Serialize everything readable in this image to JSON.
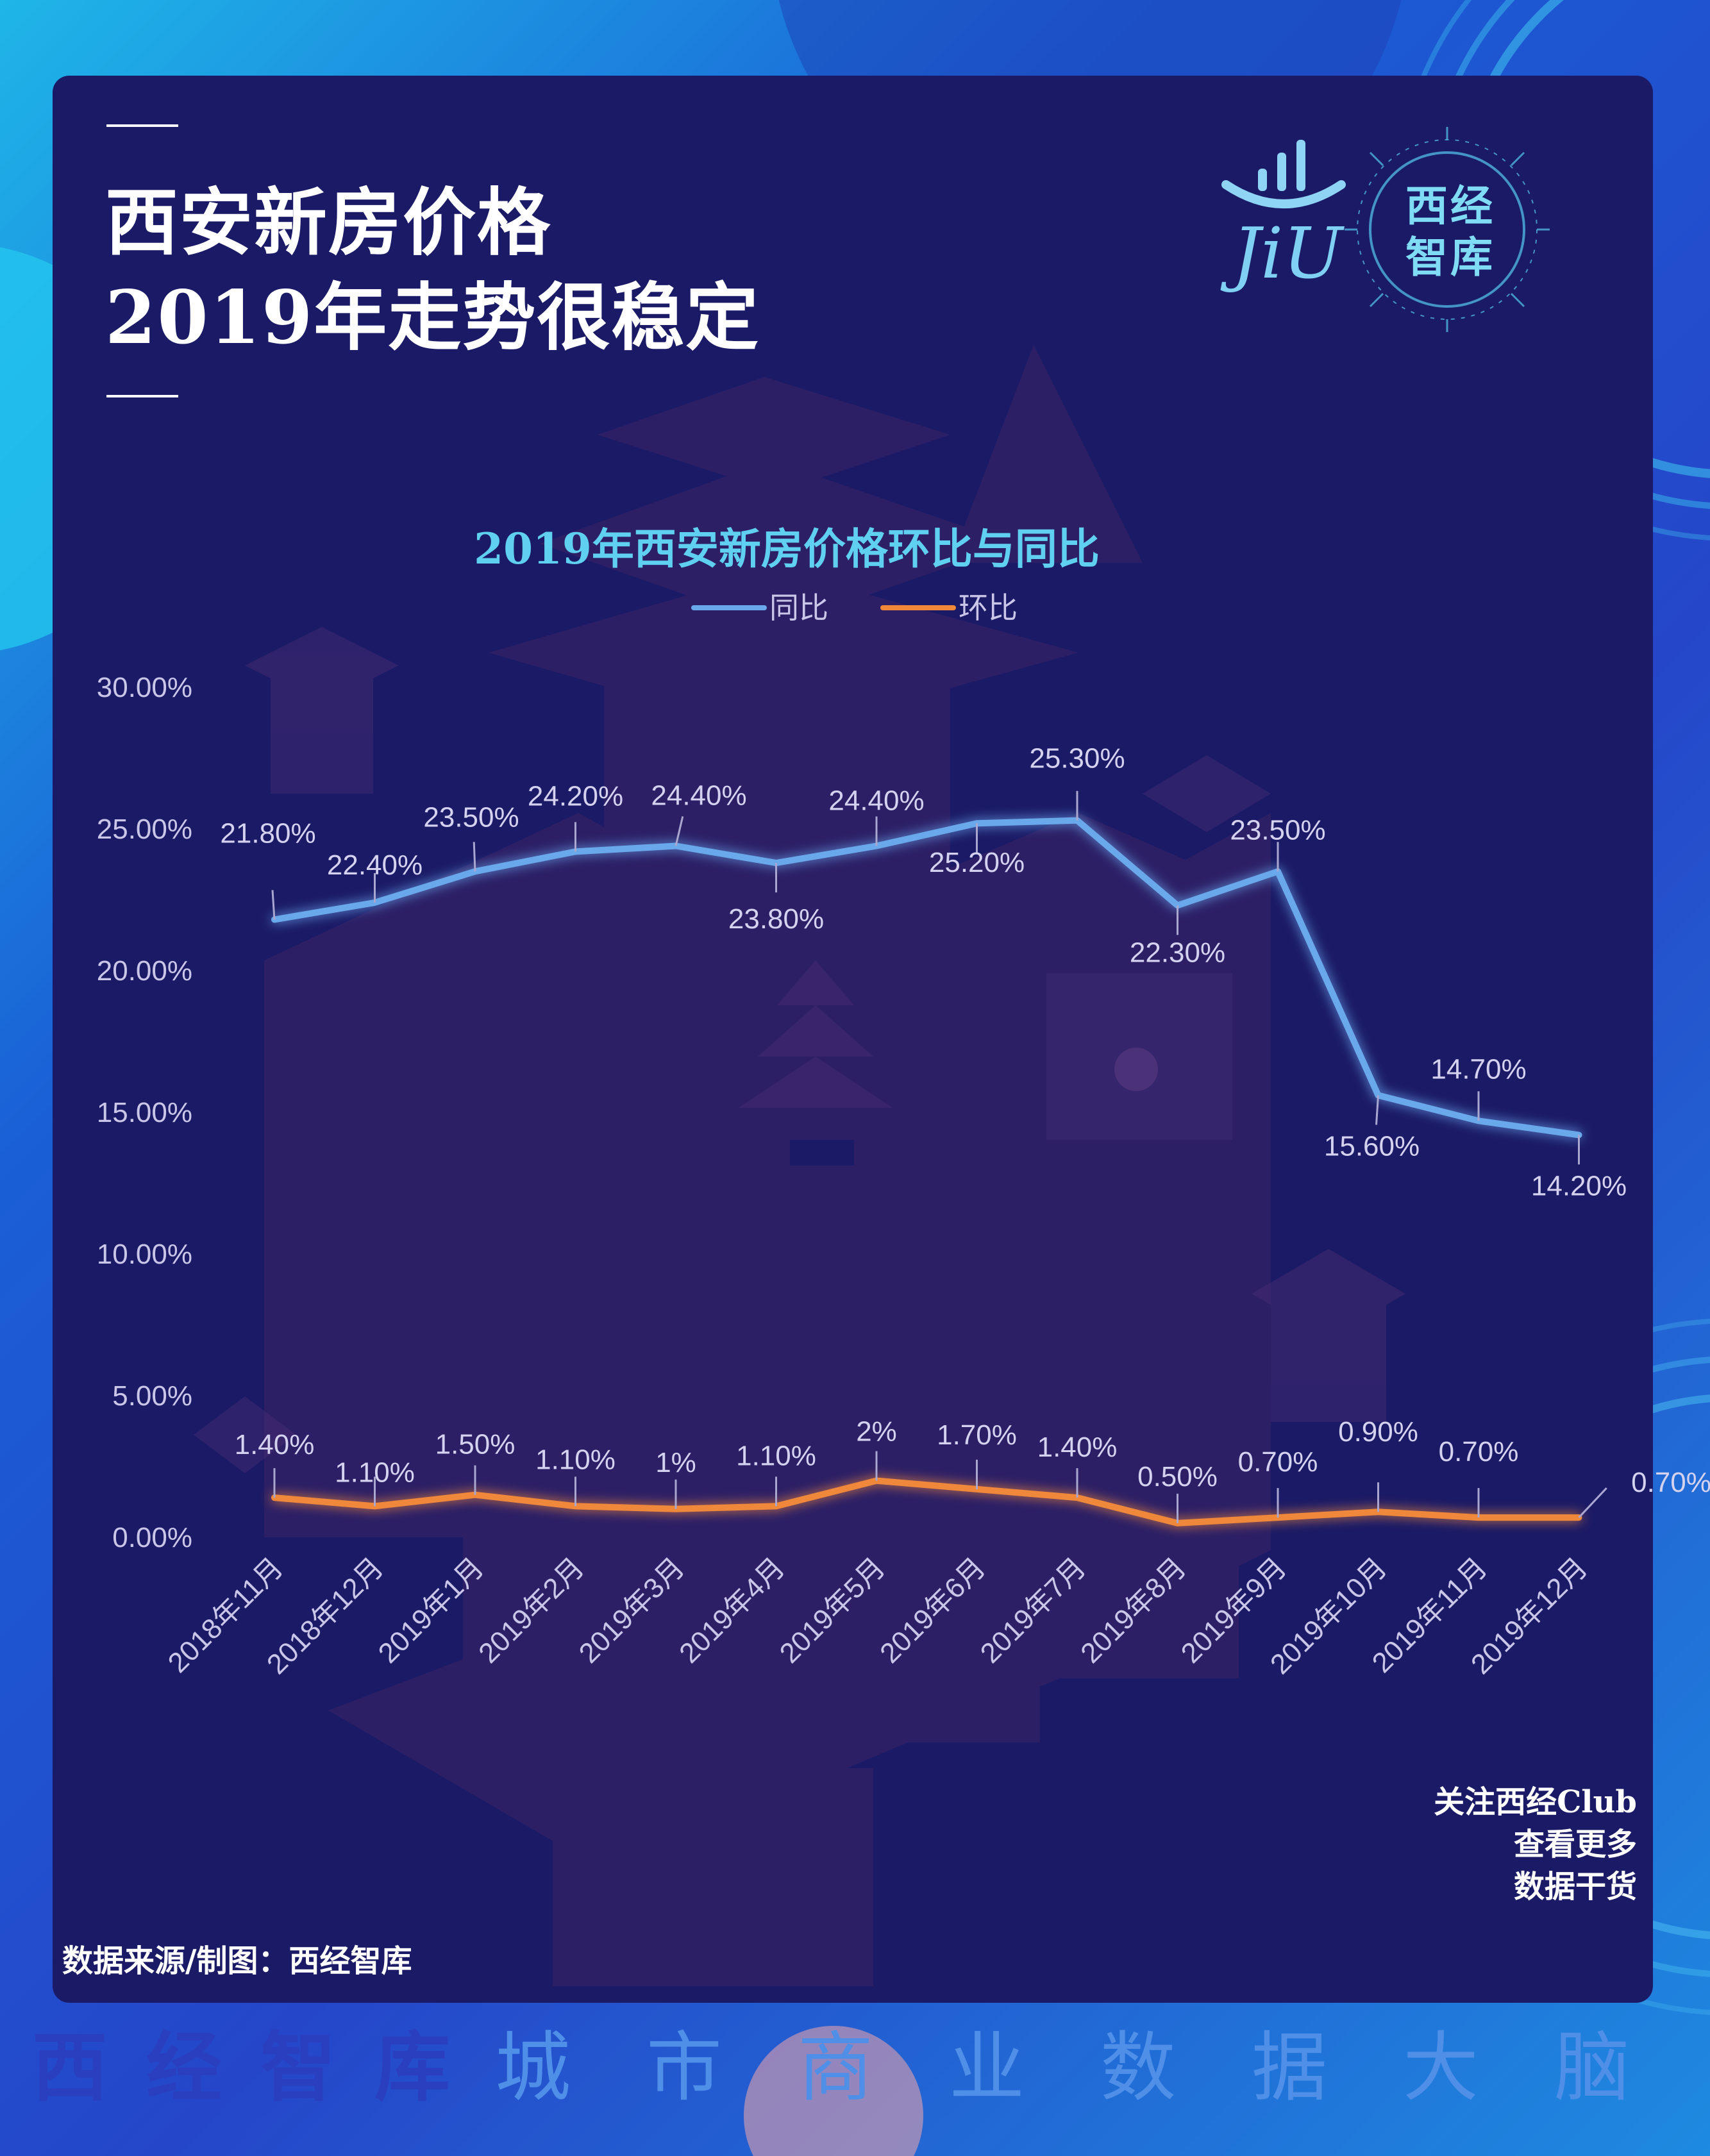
{
  "header": {
    "title_line1": "西安新房价格",
    "title_line2": "2019年走势很稳定"
  },
  "logo": {
    "mark_text": "JiU",
    "seal_line1": "西经",
    "seal_line2": "智库"
  },
  "chart_data": {
    "type": "line",
    "title": "2019年西安新房价格环比与同比",
    "categories": [
      "2018年11月",
      "2018年12月",
      "2019年1月",
      "2019年2月",
      "2019年3月",
      "2019年4月",
      "2019年5月",
      "2019年6月",
      "2019年7月",
      "2019年8月",
      "2019年9月",
      "2019年10月",
      "2019年11月",
      "2019年12月"
    ],
    "series": [
      {
        "name": "同比",
        "color": "#6aa8ec",
        "values": [
          21.8,
          22.4,
          23.5,
          24.2,
          24.4,
          23.8,
          24.4,
          25.2,
          25.3,
          22.3,
          23.5,
          15.6,
          14.7,
          14.2
        ],
        "labels": [
          "21.80%",
          "22.40%",
          "23.50%",
          "24.20%",
          "24.40%",
          "23.80%",
          "24.40%",
          "25.20%",
          "25.30%",
          "22.30%",
          "23.50%",
          "15.60%",
          "14.70%",
          "14.20%"
        ]
      },
      {
        "name": "环比",
        "color": "#f0883a",
        "values": [
          1.4,
          1.1,
          1.5,
          1.1,
          1.0,
          1.1,
          2.0,
          1.7,
          1.4,
          0.5,
          0.7,
          0.9,
          0.7,
          0.7
        ],
        "labels": [
          "1.40%",
          "1.10%",
          "1.50%",
          "1.10%",
          "1%",
          "1.10%",
          "2%",
          "1.70%",
          "1.40%",
          "0.50%",
          "0.70%",
          "0.90%",
          "0.70%",
          "0.70%"
        ]
      }
    ],
    "ylim": [
      0,
      30
    ],
    "yticks": [
      "0.00%",
      "5.00%",
      "10.00%",
      "15.00%",
      "20.00%",
      "25.00%",
      "30.00%"
    ],
    "grid": false,
    "legend_position": "top-center"
  },
  "footer": {
    "source": "数据来源/制图：西经智库",
    "follow_line1": "关注西经Club",
    "follow_line2": "查看更多",
    "follow_line3": "数据干货"
  },
  "slogan": {
    "brand": "西经智库",
    "tagline": "城市商业数据大脑"
  }
}
